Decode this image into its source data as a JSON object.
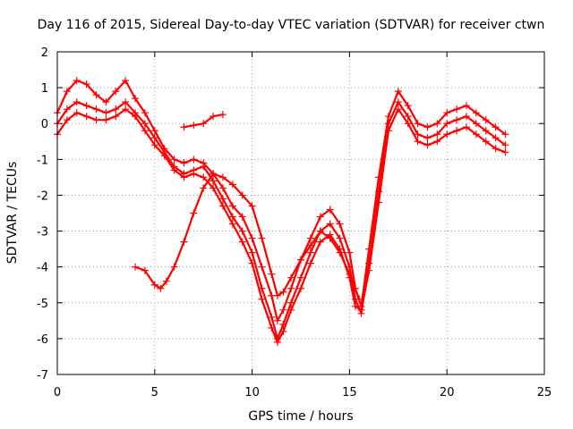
{
  "chart_data": {
    "type": "scatter",
    "title": "Day 116 of 2015, Sidereal Day-to-day VTEC variation (SDTVAR) for receiver ctwn",
    "xlabel": "GPS time / hours",
    "ylabel": "SDTVAR / TECUs",
    "xlim": [
      0,
      25
    ],
    "ylim": [
      -7,
      2
    ],
    "xticks": [
      "0",
      "5",
      "10",
      "15",
      "20",
      "25"
    ],
    "yticks": [
      "-7",
      "-6",
      "-5",
      "-4",
      "-3",
      "-2",
      "-1",
      "0",
      "1",
      "2"
    ],
    "grid": true,
    "marker": "+",
    "color": "#ff0000",
    "series": [
      {
        "x": [
          0.0,
          0.5,
          1.0,
          1.5,
          2.0,
          2.5,
          3.0,
          3.5,
          4.0,
          4.5,
          5.0,
          5.5,
          6.0,
          6.5,
          7.0,
          7.5,
          8.0,
          8.5,
          9.0,
          9.5,
          10.0,
          10.5,
          11.0,
          11.3,
          11.6,
          12.0,
          12.5,
          13.0,
          13.5,
          14.0,
          14.5,
          15.0,
          15.3,
          15.6,
          16.0,
          16.5,
          17.0,
          17.5,
          18.0,
          18.5,
          19.0,
          19.5,
          20.0,
          20.5,
          21.0,
          21.5,
          22.0,
          22.5,
          23.0
        ],
        "y": [
          0.3,
          0.9,
          1.2,
          1.1,
          0.8,
          0.6,
          0.9,
          1.2,
          0.7,
          0.3,
          -0.2,
          -0.7,
          -1.0,
          -1.1,
          -1.0,
          -1.1,
          -1.4,
          -1.8,
          -2.3,
          -2.6,
          -3.2,
          -4.0,
          -4.8,
          -5.5,
          -5.2,
          -4.6,
          -3.8,
          -3.2,
          -2.6,
          -2.4,
          -2.8,
          -3.6,
          -4.6,
          -5.1,
          -3.5,
          -1.5,
          0.2,
          0.9,
          0.5,
          0.0,
          -0.1,
          0.0,
          0.3,
          0.4,
          0.5,
          0.3,
          0.1,
          -0.1,
          -0.3
        ]
      },
      {
        "x": [
          0.0,
          0.5,
          1.0,
          1.5,
          2.0,
          2.5,
          3.0,
          3.5,
          4.0,
          4.5,
          5.0,
          5.5,
          6.0,
          6.5,
          7.0,
          7.5,
          8.0,
          8.5,
          9.0,
          9.5,
          10.0,
          10.5,
          11.0,
          11.3,
          11.6,
          12.0,
          12.5,
          13.0,
          13.5,
          14.0,
          14.5,
          15.0,
          15.3,
          15.6,
          16.0,
          16.5,
          17.0,
          17.5,
          18.0,
          18.5,
          19.0,
          19.5,
          20.0,
          20.5,
          21.0,
          21.5,
          22.0,
          22.5,
          23.0
        ],
        "y": [
          0.0,
          0.4,
          0.6,
          0.5,
          0.4,
          0.3,
          0.4,
          0.6,
          0.3,
          0.0,
          -0.4,
          -0.8,
          -1.2,
          -1.4,
          -1.3,
          -1.2,
          -1.6,
          -2.1,
          -2.6,
          -3.0,
          -3.6,
          -4.6,
          -5.4,
          -6.0,
          -5.6,
          -5.0,
          -4.3,
          -3.6,
          -3.0,
          -2.8,
          -3.2,
          -4.0,
          -4.9,
          -5.3,
          -3.9,
          -1.9,
          0.0,
          0.6,
          0.2,
          -0.3,
          -0.4,
          -0.3,
          0.0,
          0.1,
          0.2,
          0.0,
          -0.2,
          -0.4,
          -0.6
        ]
      },
      {
        "x": [
          0.0,
          0.5,
          1.0,
          1.5,
          2.0,
          2.5,
          3.0,
          3.5,
          4.0,
          4.5,
          5.0,
          5.5,
          6.0,
          6.5,
          7.0,
          7.5,
          8.0,
          8.5,
          9.0,
          9.5,
          10.0,
          10.5,
          11.0,
          11.3,
          11.6,
          12.0,
          12.5,
          13.0,
          13.5,
          14.0,
          14.5,
          15.0,
          15.3,
          15.6,
          16.0,
          16.5,
          17.0,
          17.5,
          18.0,
          18.5,
          19.0,
          19.5,
          20.0,
          20.5,
          21.0,
          21.5,
          22.0,
          22.5,
          23.0
        ],
        "y": [
          -0.3,
          0.1,
          0.3,
          0.2,
          0.1,
          0.1,
          0.2,
          0.4,
          0.2,
          -0.2,
          -0.6,
          -0.9,
          -1.3,
          -1.5,
          -1.4,
          -1.5,
          -1.8,
          -2.3,
          -2.8,
          -3.3,
          -3.9,
          -4.9,
          -5.7,
          -6.1,
          -5.8,
          -5.2,
          -4.6,
          -3.9,
          -3.3,
          -3.1,
          -3.5,
          -4.3,
          -5.1,
          -5.2,
          -4.1,
          -2.2,
          -0.2,
          0.4,
          0.0,
          -0.5,
          -0.6,
          -0.5,
          -0.3,
          -0.2,
          -0.1,
          -0.3,
          -0.5,
          -0.7,
          -0.8
        ]
      },
      {
        "x": [
          4.0,
          4.5,
          5.0,
          5.3,
          5.6,
          6.0,
          6.5,
          7.0,
          7.5,
          8.0,
          8.5,
          9.0,
          9.5,
          10.0,
          10.5,
          11.0,
          11.3,
          11.6,
          12.0,
          12.5,
          13.0,
          13.5,
          14.0,
          14.5,
          15.0,
          15.5
        ],
        "y": [
          -4.0,
          -4.1,
          -4.5,
          -4.6,
          -4.4,
          -4.0,
          -3.3,
          -2.5,
          -1.8,
          -1.4,
          -1.5,
          -1.7,
          -2.0,
          -2.3,
          -3.2,
          -4.2,
          -4.8,
          -4.7,
          -4.3,
          -3.8,
          -3.4,
          -3.0,
          -3.2,
          -3.6,
          -4.2,
          -4.9
        ]
      },
      {
        "x": [
          6.5,
          7.0,
          7.5,
          8.0,
          8.5
        ],
        "y": [
          -0.1,
          -0.05,
          0.0,
          0.2,
          0.25
        ]
      }
    ]
  }
}
